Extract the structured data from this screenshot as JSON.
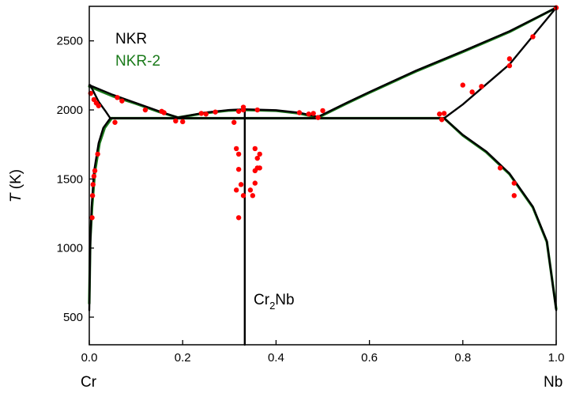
{
  "chart_data": {
    "type": "line",
    "ylabel_symbol": "T",
    "ylabel_unit": " (K)",
    "xlim": [
      0.0,
      1.0
    ],
    "ylim": [
      300,
      2750
    ],
    "x_ticks": [
      0.0,
      0.2,
      0.4,
      0.6,
      0.8,
      1.0
    ],
    "x_tick_labels": [
      "0.0",
      "0.2",
      "0.4",
      "0.6",
      "0.8",
      "1.0"
    ],
    "y_ticks": [
      500,
      1000,
      1500,
      2000,
      2500
    ],
    "y_tick_labels": [
      "500",
      "1000",
      "1500",
      "2000",
      "2500"
    ],
    "x_end_labels": {
      "left": "Cr",
      "right": "Nb"
    },
    "colors": {
      "nkr": "#000000",
      "nkr2": "#1a7a1a",
      "experiment": "#ff0000"
    },
    "legend": [
      {
        "name": "NKR",
        "color": "#000000"
      },
      {
        "name": "NKR-2",
        "color": "#1a7a1a"
      }
    ],
    "annotation": {
      "base": "Cr",
      "sub": "2",
      "tail": "Nb",
      "x": 0.345,
      "y": 1000
    },
    "series": [
      {
        "name": "NKR",
        "segments": [
          [
            [
              0.0,
              2180
            ],
            [
              0.05,
              2110
            ],
            [
              0.1,
              2050
            ],
            [
              0.15,
              1990
            ],
            [
              0.19,
              1945
            ]
          ],
          [
            [
              0.19,
              1945
            ],
            [
              0.25,
              1982
            ],
            [
              0.3,
              2000
            ],
            [
              0.333,
              2005
            ],
            [
              0.4,
              1998
            ],
            [
              0.45,
              1980
            ],
            [
              0.49,
              1950
            ]
          ],
          [
            [
              0.49,
              1950
            ],
            [
              0.55,
              2050
            ],
            [
              0.6,
              2130
            ],
            [
              0.7,
              2285
            ],
            [
              0.8,
              2425
            ],
            [
              0.9,
              2570
            ],
            [
              1.0,
              2740
            ]
          ],
          [
            [
              0.0,
              550
            ],
            [
              0.002,
              1000
            ],
            [
              0.005,
              1300
            ],
            [
              0.01,
              1550
            ],
            [
              0.02,
              1760
            ],
            [
              0.03,
              1870
            ],
            [
              0.045,
              1940
            ]
          ],
          [
            [
              0.002,
              2180
            ],
            [
              0.02,
              2060
            ],
            [
              0.035,
              1990
            ],
            [
              0.045,
              1940
            ]
          ],
          [
            [
              0.045,
              1940
            ],
            [
              0.76,
              1940
            ]
          ],
          [
            [
              0.76,
              1940
            ],
            [
              0.8,
              2040
            ],
            [
              0.9,
              2330
            ],
            [
              1.0,
              2740
            ]
          ],
          [
            [
              0.76,
              1940
            ],
            [
              0.8,
              1820
            ],
            [
              0.85,
              1700
            ],
            [
              0.9,
              1540
            ],
            [
              0.95,
              1300
            ],
            [
              0.98,
              1050
            ],
            [
              1.0,
              550
            ]
          ],
          [
            [
              0.333,
              300
            ],
            [
              0.333,
              2005
            ]
          ]
        ]
      },
      {
        "name": "NKR-2",
        "segments": [
          [
            [
              0.0,
              2170
            ],
            [
              0.05,
              2100
            ],
            [
              0.1,
              2045
            ],
            [
              0.15,
              1985
            ],
            [
              0.19,
              1945
            ]
          ],
          [
            [
              0.19,
              1945
            ],
            [
              0.25,
              1978
            ],
            [
              0.3,
              1996
            ],
            [
              0.333,
              2000
            ],
            [
              0.4,
              1994
            ],
            [
              0.45,
              1975
            ],
            [
              0.49,
              1945
            ]
          ],
          [
            [
              0.49,
              1945
            ],
            [
              0.55,
              2045
            ],
            [
              0.6,
              2125
            ],
            [
              0.7,
              2280
            ],
            [
              0.8,
              2420
            ],
            [
              0.9,
              2565
            ],
            [
              1.0,
              2740
            ]
          ],
          [
            [
              0.0,
              600
            ],
            [
              0.002,
              1050
            ],
            [
              0.006,
              1300
            ],
            [
              0.012,
              1550
            ],
            [
              0.022,
              1760
            ],
            [
              0.033,
              1870
            ],
            [
              0.048,
              1940
            ]
          ],
          [
            [
              0.048,
              1940
            ],
            [
              0.76,
              1940
            ]
          ],
          [
            [
              0.76,
              1940
            ],
            [
              0.8,
              1815
            ],
            [
              0.85,
              1695
            ],
            [
              0.9,
              1535
            ],
            [
              0.95,
              1295
            ],
            [
              0.98,
              1045
            ],
            [
              1.0,
              560
            ]
          ]
        ]
      },
      {
        "name": "experiment",
        "points": [
          [
            0.003,
            2120
          ],
          [
            0.01,
            2075
          ],
          [
            0.015,
            2050
          ],
          [
            0.02,
            2030
          ],
          [
            0.06,
            2090
          ],
          [
            0.07,
            2065
          ],
          [
            0.055,
            1910
          ],
          [
            0.12,
            2000
          ],
          [
            0.155,
            1990
          ],
          [
            0.16,
            1980
          ],
          [
            0.185,
            1920
          ],
          [
            0.2,
            1915
          ],
          [
            0.24,
            1975
          ],
          [
            0.25,
            1970
          ],
          [
            0.27,
            1985
          ],
          [
            0.31,
            1910
          ],
          [
            0.32,
            1990
          ],
          [
            0.33,
            2020
          ],
          [
            0.33,
            2000
          ],
          [
            0.36,
            2000
          ],
          [
            0.45,
            1980
          ],
          [
            0.47,
            1970
          ],
          [
            0.48,
            1975
          ],
          [
            0.49,
            1945
          ],
          [
            0.5,
            1995
          ],
          [
            0.315,
            1720
          ],
          [
            0.32,
            1680
          ],
          [
            0.32,
            1570
          ],
          [
            0.315,
            1420
          ],
          [
            0.325,
            1460
          ],
          [
            0.33,
            1380
          ],
          [
            0.32,
            1220
          ],
          [
            0.345,
            1420
          ],
          [
            0.35,
            1380
          ],
          [
            0.355,
            1720
          ],
          [
            0.36,
            1650
          ],
          [
            0.36,
            1580
          ],
          [
            0.355,
            1560
          ],
          [
            0.355,
            1470
          ],
          [
            0.365,
            1580
          ],
          [
            0.365,
            1680
          ],
          [
            0.018,
            1680
          ],
          [
            0.012,
            1560
          ],
          [
            0.01,
            1520
          ],
          [
            0.008,
            1460
          ],
          [
            0.007,
            1380
          ],
          [
            0.006,
            1220
          ],
          [
            0.75,
            1970
          ],
          [
            0.755,
            1930
          ],
          [
            0.76,
            1975
          ],
          [
            0.8,
            2180
          ],
          [
            0.82,
            2130
          ],
          [
            0.84,
            2170
          ],
          [
            0.9,
            2370
          ],
          [
            0.9,
            2320
          ],
          [
            0.95,
            2530
          ],
          [
            0.88,
            1580
          ],
          [
            0.91,
            1470
          ],
          [
            0.91,
            1380
          ],
          [
            1.0,
            2740
          ]
        ]
      }
    ]
  }
}
